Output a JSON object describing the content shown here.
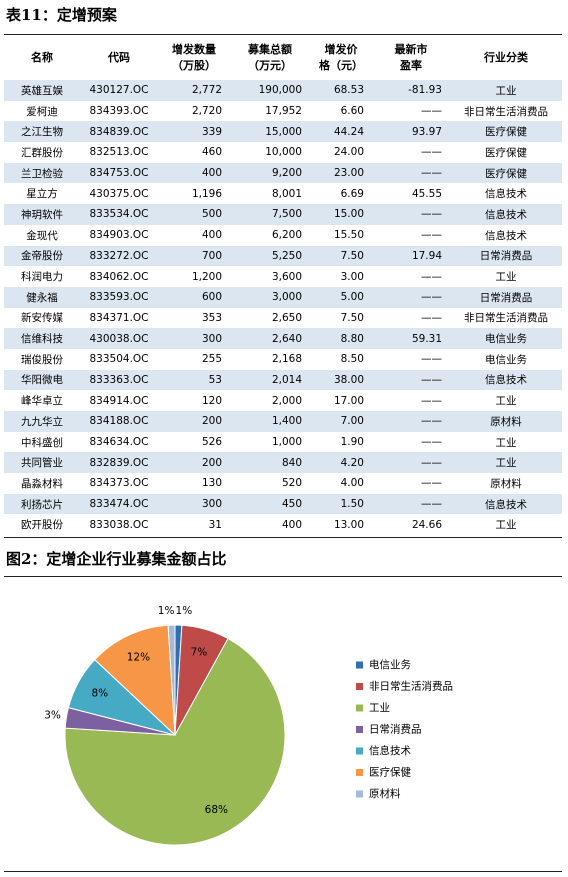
{
  "header": {
    "title": "表11：定增预案"
  },
  "table": {
    "columns": [
      [
        "名称"
      ],
      [
        "代码"
      ],
      [
        "增发数量",
        "（万股）"
      ],
      [
        "募集总额",
        "（万元）"
      ],
      [
        "增发价",
        "格（元）"
      ],
      [
        "最新市",
        "盈率"
      ],
      [
        "行业分类"
      ]
    ],
    "rows": [
      [
        "英雄互娱",
        "430127.OC",
        "2,772",
        "190,000",
        "68.53",
        "-81.93",
        "工业"
      ],
      [
        "爱柯迪",
        "834393.OC",
        "2,720",
        "17,952",
        "6.60",
        "——",
        "非日常生活消费品"
      ],
      [
        "之江生物",
        "834839.OC",
        "339",
        "15,000",
        "44.24",
        "93.97",
        "医疗保健"
      ],
      [
        "汇群股份",
        "832513.OC",
        "460",
        "10,000",
        "24.00",
        "——",
        "医疗保健"
      ],
      [
        "兰卫检验",
        "834753.OC",
        "400",
        "9,200",
        "23.00",
        "——",
        "医疗保健"
      ],
      [
        "星立方",
        "430375.OC",
        "1,196",
        "8,001",
        "6.69",
        "45.55",
        "信息技术"
      ],
      [
        "神玥软件",
        "833534.OC",
        "500",
        "7,500",
        "15.00",
        "——",
        "信息技术"
      ],
      [
        "金现代",
        "834903.OC",
        "400",
        "6,200",
        "15.50",
        "——",
        "信息技术"
      ],
      [
        "金帝股份",
        "833272.OC",
        "700",
        "5,250",
        "7.50",
        "17.94",
        "日常消费品"
      ],
      [
        "科润电力",
        "834062.OC",
        "1,200",
        "3,600",
        "3.00",
        "——",
        "工业"
      ],
      [
        "健永福",
        "833593.OC",
        "600",
        "3,000",
        "5.00",
        "——",
        "日常消费品"
      ],
      [
        "新安传媒",
        "834371.OC",
        "353",
        "2,650",
        "7.50",
        "——",
        "非日常生活消费品"
      ],
      [
        "信维科技",
        "430038.OC",
        "300",
        "2,640",
        "8.80",
        "59.31",
        "电信业务"
      ],
      [
        "瑞俊股份",
        "833504.OC",
        "255",
        "2,168",
        "8.50",
        "——",
        "电信业务"
      ],
      [
        "华阳微电",
        "833363.OC",
        "53",
        "2,014",
        "38.00",
        "——",
        "信息技术"
      ],
      [
        "峰华卓立",
        "834914.OC",
        "120",
        "2,000",
        "17.00",
        "——",
        "工业"
      ],
      [
        "九九华立",
        "834188.OC",
        "200",
        "1,400",
        "7.00",
        "——",
        "原材料"
      ],
      [
        "中科盛创",
        "834634.OC",
        "526",
        "1,000",
        "1.90",
        "——",
        "工业"
      ],
      [
        "共同管业",
        "832839.OC",
        "200",
        "840",
        "4.20",
        "——",
        "工业"
      ],
      [
        "晶淼材料",
        "834373.OC",
        "130",
        "520",
        "4.00",
        "——",
        "原材料"
      ],
      [
        "利扬芯片",
        "833474.OC",
        "300",
        "450",
        "1.50",
        "——",
        "信息技术"
      ],
      [
        "欧开股份",
        "833038.OC",
        "31",
        "400",
        "13.00",
        "24.66",
        "工业"
      ]
    ]
  },
  "chart_data": {
    "type": "pie",
    "title": "图2：定增企业行业募集金额占比",
    "categories": [
      "电信业务",
      "非日常生活消费品",
      "工业",
      "日常消费品",
      "信息技术",
      "医疗保健",
      "原材料"
    ],
    "values": [
      1,
      7,
      68,
      3,
      8,
      12,
      1
    ],
    "value_labels": [
      "1%",
      "7%",
      "68%",
      "3%",
      "8%",
      "12%",
      "1%"
    ],
    "colors": [
      "#2e6fb5",
      "#be4b48",
      "#98b954",
      "#7d60a0",
      "#46aac5",
      "#f79646",
      "#a5b9d9"
    ]
  }
}
